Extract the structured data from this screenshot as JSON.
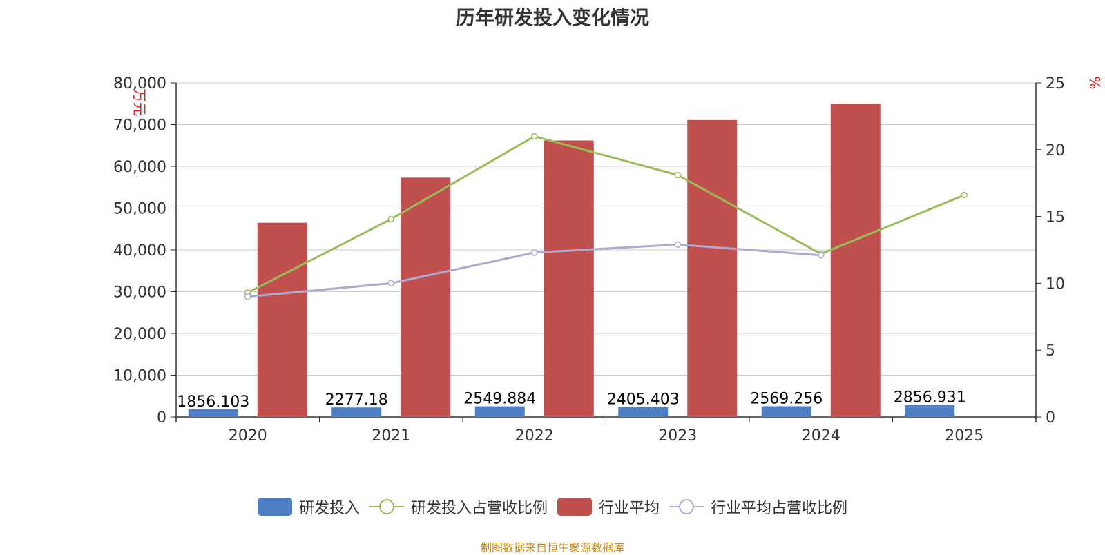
{
  "chart_data": {
    "type": "bar",
    "title": "历年研发投入变化情况",
    "categories": [
      "2020",
      "2021",
      "2022",
      "2023",
      "2024",
      "2025"
    ],
    "y_left": {
      "label": "万元",
      "ticks": [
        "0",
        "10,000",
        "20,000",
        "30,000",
        "40,000",
        "50,000",
        "60,000",
        "70,000",
        "80,000"
      ],
      "min": 0,
      "max": 80000
    },
    "y_right": {
      "label": "%",
      "ticks": [
        "0",
        "5",
        "10",
        "15",
        "20",
        "25"
      ],
      "min": 0,
      "max": 25
    },
    "series": [
      {
        "name": "研发投入",
        "kind": "bar",
        "axis": "left",
        "color": "#4e7fc4",
        "values": [
          1856.103,
          2277.18,
          2549.884,
          2405.403,
          2569.256,
          2856.931
        ],
        "labels": [
          "1856.103",
          "2277.18",
          "2549.884",
          "2405.403",
          "2569.256",
          "2856.931"
        ]
      },
      {
        "name": "研发投入占营收比例",
        "kind": "line",
        "axis": "right",
        "color": "#9bbb59",
        "values": [
          9.3,
          14.8,
          21.0,
          18.1,
          12.2,
          16.6
        ]
      },
      {
        "name": "行业平均",
        "kind": "bar",
        "axis": "left",
        "color": "#c0504d",
        "values": [
          46500,
          57300,
          66200,
          71100,
          75000,
          null
        ]
      },
      {
        "name": "行业平均占营收比例",
        "kind": "line",
        "axis": "right",
        "color": "#b3a7d1",
        "values": [
          9.0,
          10.0,
          12.3,
          12.9,
          12.1,
          null
        ]
      }
    ],
    "grid": true,
    "legend_position": "bottom"
  },
  "footer": "制图数据来自恒生聚源数据库"
}
